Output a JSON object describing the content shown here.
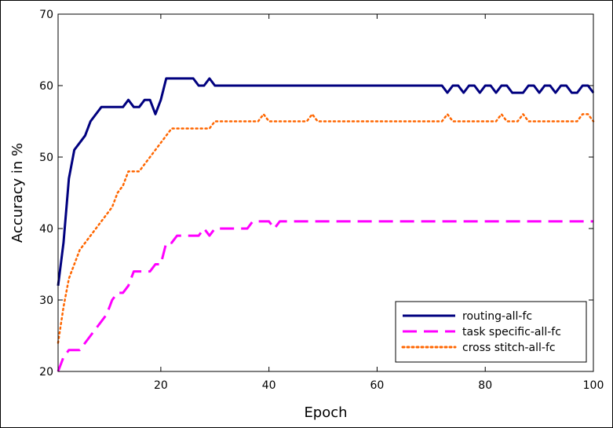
{
  "chart_data": {
    "type": "line",
    "title": "",
    "xlabel": "Epoch",
    "ylabel": "Accuracy in %",
    "xlim": [
      1,
      100
    ],
    "ylim": [
      20,
      70
    ],
    "xticks": [
      20,
      40,
      60,
      80,
      100
    ],
    "yticks": [
      20,
      30,
      40,
      50,
      60,
      70
    ],
    "grid": false,
    "legend_position": "bottom-right",
    "series": [
      {
        "name": "routing-all-fc",
        "color": "#00007f",
        "style": "solid",
        "x": [
          1,
          2,
          3,
          4,
          5,
          6,
          7,
          8,
          9,
          10,
          11,
          12,
          13,
          14,
          15,
          16,
          17,
          18,
          19,
          20,
          21,
          22,
          23,
          24,
          25,
          26,
          27,
          28,
          29,
          30,
          35,
          40,
          50,
          60,
          70,
          72,
          73,
          74,
          75,
          76,
          77,
          78,
          79,
          80,
          81,
          82,
          83,
          84,
          85,
          86,
          87,
          88,
          89,
          90,
          91,
          92,
          93,
          94,
          95,
          96,
          97,
          98,
          99,
          100
        ],
        "values": [
          32,
          38,
          47,
          51,
          52,
          53,
          55,
          56,
          57,
          57,
          57,
          57,
          57,
          58,
          57,
          57,
          58,
          58,
          56,
          58,
          61,
          61,
          61,
          61,
          61,
          61,
          60,
          60,
          61,
          60,
          60,
          60,
          60,
          60,
          60,
          60,
          59,
          60,
          60,
          59,
          60,
          60,
          59,
          60,
          60,
          59,
          60,
          60,
          59,
          59,
          59,
          60,
          60,
          59,
          60,
          60,
          59,
          60,
          60,
          59,
          59,
          60,
          60,
          59
        ]
      },
      {
        "name": "task specific-all-fc",
        "color": "#ff00ff",
        "style": "dashed",
        "x": [
          1,
          2,
          3,
          4,
          5,
          6,
          7,
          8,
          9,
          10,
          11,
          12,
          13,
          14,
          15,
          16,
          17,
          18,
          19,
          20,
          21,
          22,
          23,
          24,
          25,
          26,
          27,
          28,
          29,
          30,
          31,
          32,
          33,
          34,
          35,
          36,
          37,
          38,
          39,
          40,
          41,
          42,
          43,
          44,
          50,
          60,
          70,
          80,
          90,
          100
        ],
        "values": [
          20,
          22,
          23,
          23,
          23,
          24,
          25,
          26,
          27,
          28,
          30,
          31,
          31,
          32,
          34,
          34,
          34,
          34,
          35,
          35,
          38,
          38,
          39,
          39,
          39,
          39,
          39,
          40,
          39,
          40,
          40,
          40,
          40,
          40,
          40,
          40,
          41,
          41,
          41,
          41,
          40,
          41,
          41,
          41,
          41,
          41,
          41,
          41,
          41,
          41
        ]
      },
      {
        "name": "cross stitch-all-fc",
        "color": "#ff6600",
        "style": "dotted",
        "x": [
          1,
          2,
          3,
          4,
          5,
          6,
          7,
          8,
          9,
          10,
          11,
          12,
          13,
          14,
          15,
          16,
          17,
          18,
          19,
          20,
          21,
          22,
          23,
          24,
          25,
          26,
          27,
          28,
          29,
          30,
          31,
          32,
          33,
          34,
          35,
          36,
          37,
          38,
          39,
          40,
          41,
          45,
          47,
          48,
          49,
          50,
          60,
          70,
          72,
          73,
          74,
          80,
          82,
          83,
          84,
          85,
          86,
          87,
          88,
          90,
          95,
          97,
          98,
          99,
          100
        ],
        "values": [
          24,
          29,
          33,
          35,
          37,
          38,
          39,
          40,
          41,
          42,
          43,
          45,
          46,
          48,
          48,
          48,
          49,
          50,
          51,
          52,
          53,
          54,
          54,
          54,
          54,
          54,
          54,
          54,
          54,
          55,
          55,
          55,
          55,
          55,
          55,
          55,
          55,
          55,
          56,
          55,
          55,
          55,
          55,
          56,
          55,
          55,
          55,
          55,
          55,
          56,
          55,
          55,
          55,
          56,
          55,
          55,
          55,
          56,
          55,
          55,
          55,
          55,
          56,
          56,
          55
        ]
      }
    ]
  }
}
